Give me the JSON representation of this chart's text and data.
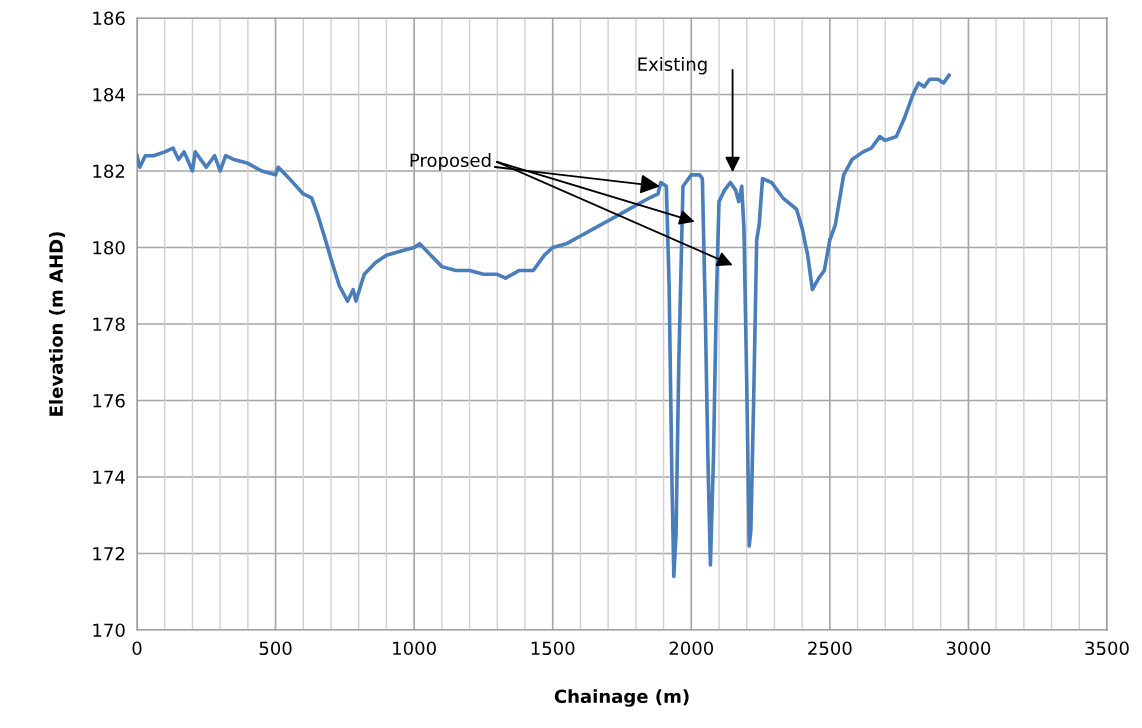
{
  "chart_data": {
    "type": "line",
    "xlabel": "Chainage (m)",
    "ylabel": "Elevation (m AHD)",
    "xlim": [
      0,
      3500
    ],
    "xticks": [
      0,
      500,
      1000,
      1500,
      2000,
      2500,
      3000,
      3500
    ],
    "ylim": [
      170,
      186
    ],
    "yticks": [
      170,
      172,
      174,
      176,
      178,
      180,
      182,
      184,
      186
    ],
    "grid": true,
    "legend": false,
    "marker": "none",
    "line_style": "solid",
    "series": [
      {
        "color": "#4a7ebb",
        "x": [
          0,
          10,
          30,
          60,
          100,
          130,
          150,
          170,
          200,
          210,
          250,
          280,
          300,
          320,
          350,
          400,
          450,
          500,
          510,
          550,
          600,
          630,
          650,
          680,
          700,
          730,
          760,
          780,
          790,
          820,
          860,
          900,
          950,
          1000,
          1020,
          1060,
          1100,
          1150,
          1200,
          1250,
          1300,
          1330,
          1380,
          1430,
          1470,
          1500,
          1550,
          1600,
          1650,
          1700,
          1750,
          1800,
          1850,
          1880,
          1890,
          1910,
          1920,
          1930,
          1937,
          1945,
          1955,
          1970,
          2000,
          2030,
          2040,
          2050,
          2060,
          2069,
          2080,
          2090,
          2100,
          2120,
          2141,
          2160,
          2171,
          2182,
          2190,
          2200,
          2209,
          2215,
          2225,
          2236,
          2245,
          2257,
          2290,
          2330,
          2380,
          2400,
          2420,
          2437,
          2460,
          2480,
          2500,
          2520,
          2550,
          2580,
          2620,
          2650,
          2680,
          2700,
          2740,
          2770,
          2800,
          2820,
          2840,
          2860,
          2890,
          2910,
          2930
        ],
        "values": [
          182.4,
          182.1,
          182.4,
          182.4,
          182.5,
          182.6,
          182.3,
          182.5,
          182.0,
          182.5,
          182.1,
          182.4,
          182.0,
          182.4,
          182.3,
          182.2,
          182.0,
          181.9,
          182.1,
          181.8,
          181.4,
          181.3,
          180.9,
          180.2,
          179.7,
          179.0,
          178.6,
          178.9,
          178.6,
          179.3,
          179.6,
          179.8,
          179.9,
          180.0,
          180.1,
          179.8,
          179.5,
          179.4,
          179.4,
          179.3,
          179.3,
          179.2,
          179.4,
          179.4,
          179.8,
          180.0,
          180.1,
          180.3,
          180.5,
          180.7,
          180.9,
          181.1,
          181.3,
          181.4,
          181.7,
          181.6,
          179.0,
          174.0,
          171.4,
          172.5,
          177.0,
          181.6,
          181.9,
          181.9,
          181.8,
          178.5,
          174.5,
          171.7,
          174.5,
          178.5,
          181.2,
          181.5,
          181.7,
          181.5,
          181.2,
          181.6,
          180.5,
          176.5,
          172.2,
          172.6,
          176.0,
          180.2,
          180.6,
          181.8,
          181.7,
          181.3,
          181.0,
          180.5,
          179.8,
          178.9,
          179.2,
          179.4,
          180.2,
          180.6,
          181.9,
          182.3,
          182.5,
          182.6,
          182.9,
          182.8,
          182.9,
          183.4,
          184.0,
          184.3,
          184.2,
          184.4,
          184.4,
          184.3,
          184.5
        ]
      }
    ],
    "annotations": [
      {
        "text": "Proposed",
        "x": 1887,
        "y": 181.6
      },
      "Existing"
    ]
  }
}
